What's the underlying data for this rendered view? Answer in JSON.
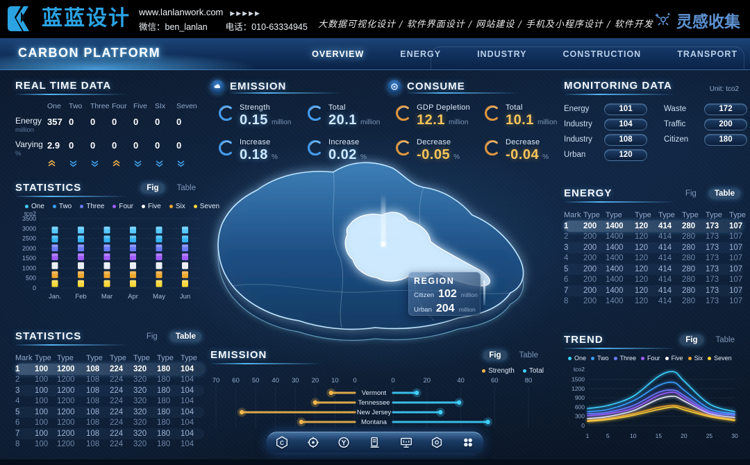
{
  "brand": {
    "logo_text": "蓝蓝设计",
    "website": "www.lanlanwork.com",
    "arrows": "▶▶▶▶▶",
    "wechat": "微信：ben_lanlan",
    "phone": "电话：010-63334945",
    "services": "大数据可视化设计 / 软件界面设计 / 网站建设 / 手机及小程序设计 / 软件开发",
    "collection": "灵感收集"
  },
  "nav": {
    "title": "CARBON PLATFORM",
    "items": [
      {
        "label": "OVERVIEW",
        "active": true
      },
      {
        "label": "ENERGY",
        "active": false
      },
      {
        "label": "INDUSTRY",
        "active": false
      },
      {
        "label": "CONSTRUCTION",
        "active": false
      },
      {
        "label": "TRANSPORT",
        "active": false
      }
    ]
  },
  "legend": [
    {
      "label": "One",
      "color": "#3ed0ff"
    },
    {
      "label": "Two",
      "color": "#3b9fff"
    },
    {
      "label": "Three",
      "color": "#6b7bff"
    },
    {
      "label": "Four",
      "color": "#a05cff"
    },
    {
      "label": "Five",
      "color": "#ffffff"
    },
    {
      "label": "Six",
      "color": "#f0a82e"
    },
    {
      "label": "Seven",
      "color": "#ffd83a"
    }
  ],
  "realtime": {
    "title": "REAL TIME DATA",
    "columns": [
      "One",
      "Two",
      "Three",
      "Four",
      "Five",
      "SIx",
      "Seven"
    ],
    "rows": [
      {
        "label": "Energy",
        "unit": "million",
        "values": [
          "357",
          "0",
          "0",
          "0",
          "0",
          "0",
          "0"
        ]
      },
      {
        "label": "Varying",
        "unit": "%",
        "values": [
          "2.9",
          "0",
          "0",
          "0",
          "0",
          "0",
          "0"
        ]
      }
    ],
    "trends": [
      "up",
      "down",
      "down",
      "up",
      "down",
      "down",
      "down"
    ]
  },
  "emission_panel": {
    "title": "EMISSION",
    "metrics": [
      {
        "label": "Strength",
        "value": "0.15",
        "unit": "million"
      },
      {
        "label": "Total",
        "value": "20.1",
        "unit": "million"
      },
      {
        "label": "Increase",
        "value": "0.18",
        "unit": "%"
      },
      {
        "label": "Increase",
        "value": "0.02",
        "unit": "%"
      }
    ]
  },
  "consume_panel": {
    "title": "CONSUME",
    "metrics": [
      {
        "label": "GDP Depletion",
        "value": "12.1",
        "unit": "million"
      },
      {
        "label": "Total",
        "value": "10.1",
        "unit": "million"
      },
      {
        "label": "Decrease",
        "value": "-0.05",
        "unit": "%"
      },
      {
        "label": "Decrease",
        "value": "-0.04",
        "unit": "%"
      }
    ]
  },
  "monitoring": {
    "title": "MONITORING DATA",
    "unit": "Unit: tco2",
    "left": [
      {
        "label": "Energy",
        "value": "101"
      },
      {
        "label": "Industry",
        "value": "104"
      },
      {
        "label": "Industry",
        "value": "108"
      },
      {
        "label": "Urban",
        "value": "120"
      }
    ],
    "right": [
      {
        "label": "Waste",
        "value": "172"
      },
      {
        "label": "Traffic",
        "value": "200"
      },
      {
        "label": "Citizen",
        "value": "180"
      }
    ]
  },
  "region_tooltip": {
    "title": "REGION",
    "rows": [
      {
        "label": "Citizen",
        "value": "102",
        "unit": "million"
      },
      {
        "label": "Urban",
        "value": "204",
        "unit": "million"
      }
    ]
  },
  "statistics_fig": {
    "title": "STATISTICS",
    "tabs": [
      {
        "label": "Fig",
        "active": true
      },
      {
        "label": "Table",
        "active": false
      }
    ],
    "chart": {
      "type": "bar-stacked",
      "unit": "tco2",
      "categories": [
        "Jan.",
        "Feb",
        "Mar",
        "Apr",
        "May",
        "Jun"
      ],
      "yticks": [
        0,
        500,
        1000,
        1500,
        2000,
        2500,
        3000,
        3500
      ],
      "ylim": [
        0,
        3500
      ],
      "series": [
        {
          "name": "Seven",
          "color": "#ffd83a",
          "values": [
            450,
            450,
            450,
            450,
            450,
            450
          ]
        },
        {
          "name": "Six",
          "color": "#f0a82e",
          "values": [
            450,
            450,
            450,
            450,
            450,
            450
          ]
        },
        {
          "name": "Five",
          "color": "#e9eef5",
          "values": [
            450,
            450,
            450,
            450,
            450,
            450
          ]
        },
        {
          "name": "Four",
          "color": "#a05cff",
          "values": [
            450,
            450,
            450,
            450,
            450,
            450
          ]
        },
        {
          "name": "Three",
          "color": "#6b7bff",
          "values": [
            450,
            450,
            450,
            450,
            450,
            450
          ]
        },
        {
          "name": "Two",
          "color": "#35b5f5",
          "values": [
            450,
            450,
            450,
            450,
            450,
            450
          ]
        },
        {
          "name": "One",
          "color": "#57c8ff",
          "values": [
            450,
            450,
            450,
            450,
            450,
            450
          ]
        }
      ]
    }
  },
  "statistics_table": {
    "title": "STATISTICS",
    "tabs": [
      {
        "label": "Fig",
        "active": false
      },
      {
        "label": "Table",
        "active": true
      }
    ],
    "headers": [
      "Mark",
      "Type",
      "Type",
      "Type",
      "Type",
      "Type",
      "Type",
      "Type"
    ],
    "rows": [
      [
        "1",
        "100",
        "1200",
        "108",
        "224",
        "320",
        "180",
        "104"
      ],
      [
        "2",
        "100",
        "1200",
        "108",
        "224",
        "320",
        "180",
        "104"
      ],
      [
        "3",
        "100",
        "1200",
        "108",
        "224",
        "320",
        "180",
        "104"
      ],
      [
        "4",
        "100",
        "1200",
        "108",
        "224",
        "320",
        "180",
        "104"
      ],
      [
        "5",
        "100",
        "1200",
        "108",
        "224",
        "320",
        "180",
        "104"
      ],
      [
        "6",
        "100",
        "1200",
        "108",
        "224",
        "320",
        "180",
        "104"
      ],
      [
        "7",
        "100",
        "1200",
        "108",
        "224",
        "320",
        "180",
        "104"
      ],
      [
        "8",
        "100",
        "1200",
        "108",
        "224",
        "320",
        "180",
        "104"
      ]
    ]
  },
  "energy_table": {
    "title": "ENERGY",
    "tabs": [
      {
        "label": "Fig",
        "active": false
      },
      {
        "label": "Table",
        "active": true
      }
    ],
    "headers": [
      "Mark",
      "Type",
      "Type",
      "Type",
      "Type",
      "Type",
      "Type",
      "Type"
    ],
    "rows": [
      [
        "1",
        "200",
        "1400",
        "120",
        "414",
        "280",
        "173",
        "107"
      ],
      [
        "2",
        "200",
        "1400",
        "120",
        "414",
        "280",
        "173",
        "107"
      ],
      [
        "3",
        "200",
        "1400",
        "120",
        "414",
        "280",
        "173",
        "107"
      ],
      [
        "4",
        "200",
        "1400",
        "120",
        "414",
        "280",
        "173",
        "107"
      ],
      [
        "5",
        "200",
        "1400",
        "120",
        "414",
        "280",
        "173",
        "107"
      ],
      [
        "6",
        "200",
        "1400",
        "120",
        "414",
        "280",
        "173",
        "107"
      ],
      [
        "7",
        "200",
        "1400",
        "120",
        "414",
        "280",
        "173",
        "107"
      ],
      [
        "8",
        "200",
        "1400",
        "120",
        "414",
        "280",
        "173",
        "107"
      ]
    ]
  },
  "emission_chart": {
    "title": "EMISSION",
    "tabs": [
      {
        "label": "Fig",
        "active": true
      },
      {
        "label": "Table",
        "active": false
      }
    ],
    "legend": [
      {
        "label": "Strength",
        "color": "#f2b84b"
      },
      {
        "label": "Total",
        "color": "#3ed0ff"
      }
    ],
    "chart": {
      "type": "dumbbell",
      "categories": [
        "Vermont",
        "Tennessee",
        "New Jersey",
        "Montana"
      ],
      "left_ticks": [
        70,
        60,
        50,
        40,
        30,
        20,
        10,
        0
      ],
      "right_ticks": [
        0,
        20,
        40,
        60,
        80
      ],
      "series": [
        {
          "name": "Strength",
          "color": "#f2b84b",
          "values": [
            12,
            20,
            57,
            27
          ]
        },
        {
          "name": "Total",
          "color": "#3ed0ff",
          "values": [
            14,
            39,
            28,
            56
          ]
        }
      ]
    }
  },
  "trend": {
    "title": "TREND",
    "tabs": [
      {
        "label": "Fig",
        "active": true
      },
      {
        "label": "Table",
        "active": false
      }
    ],
    "chart": {
      "type": "line",
      "unit": "tco2",
      "x": [
        1,
        5,
        10,
        15,
        18,
        20,
        25,
        30
      ],
      "xticks": [
        1,
        5,
        10,
        15,
        20,
        25,
        30
      ],
      "yticks": [
        0,
        300,
        600,
        900,
        1200,
        1500
      ],
      "ylim": [
        0,
        1900
      ],
      "series": [
        {
          "name": "One",
          "color": "#3ed0ff",
          "values": [
            550,
            650,
            950,
            1600,
            1750,
            1450,
            700,
            450
          ]
        },
        {
          "name": "Two",
          "color": "#3b9fff",
          "values": [
            450,
            520,
            800,
            1300,
            1400,
            1150,
            550,
            380
          ]
        },
        {
          "name": "Three",
          "color": "#6b7bff",
          "values": [
            380,
            430,
            650,
            1080,
            1150,
            980,
            470,
            330
          ]
        },
        {
          "name": "Four",
          "color": "#a05cff",
          "values": [
            320,
            380,
            560,
            980,
            1080,
            900,
            430,
            370
          ]
        },
        {
          "name": "Five",
          "color": "#e8eef5",
          "values": [
            220,
            290,
            480,
            860,
            950,
            800,
            390,
            260
          ]
        },
        {
          "name": "Six",
          "color": "#f0a82e",
          "values": [
            160,
            230,
            380,
            590,
            650,
            580,
            330,
            190
          ]
        },
        {
          "name": "Seven",
          "color": "#ffd83a",
          "values": [
            130,
            190,
            330,
            520,
            600,
            510,
            290,
            160
          ]
        }
      ]
    }
  },
  "dock": {
    "icons": [
      {
        "name": "hexagon-c-icon"
      },
      {
        "name": "gear-icon"
      },
      {
        "name": "circle-y-icon"
      },
      {
        "name": "charging-station-icon"
      },
      {
        "name": "monitor-icon"
      },
      {
        "name": "nut-icon"
      },
      {
        "name": "app-grid-icon"
      }
    ]
  },
  "colors": {
    "accent_cyan": "#3ec9ff",
    "accent_gold": "#f2b84b",
    "trend_up": "#f0b24a",
    "trend_down": "#3f9fe8"
  }
}
